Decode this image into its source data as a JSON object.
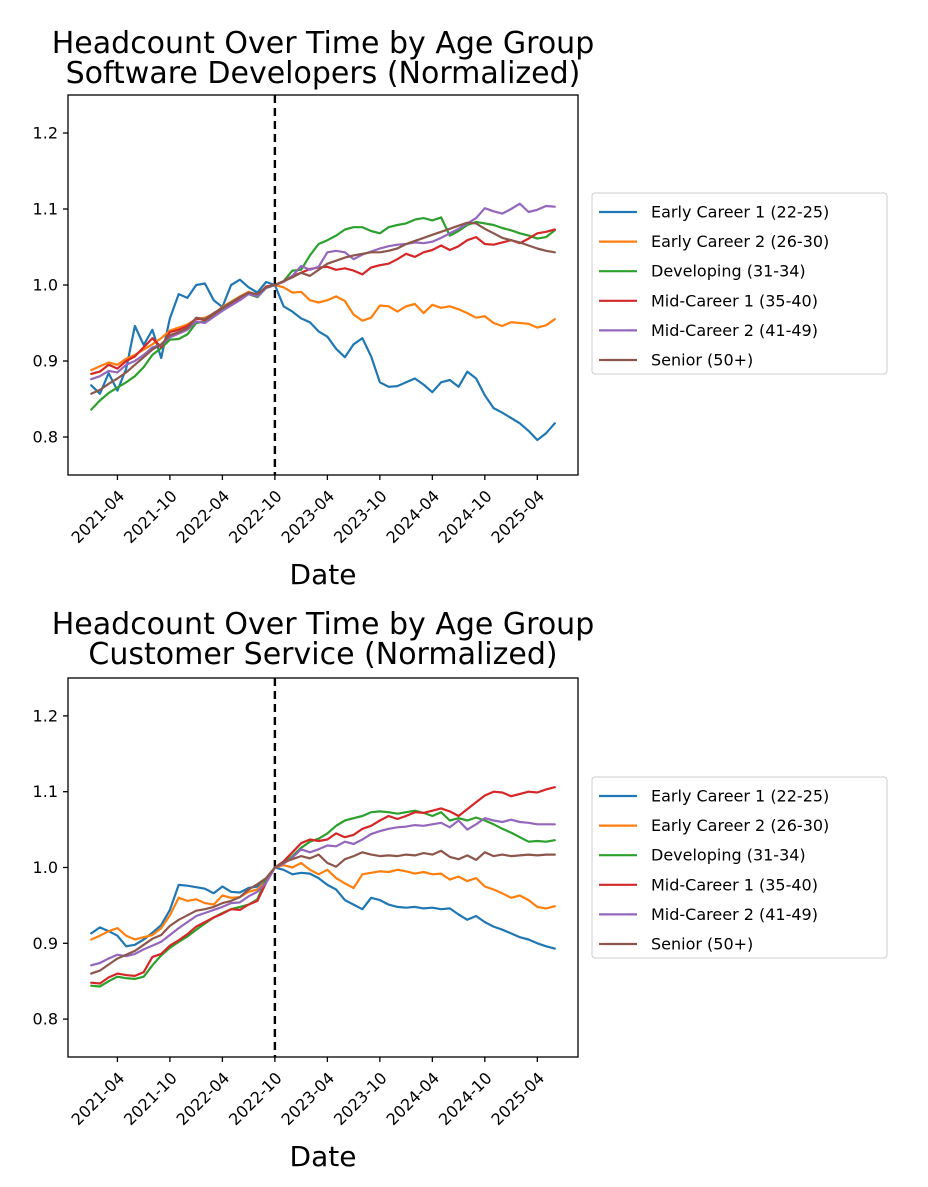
{
  "page": {
    "background": "#ffffff",
    "text_color": "#000000"
  },
  "months": [
    "2021-01",
    "2021-02",
    "2021-03",
    "2021-04",
    "2021-05",
    "2021-06",
    "2021-07",
    "2021-08",
    "2021-09",
    "2021-10",
    "2021-11",
    "2021-12",
    "2022-01",
    "2022-02",
    "2022-03",
    "2022-04",
    "2022-05",
    "2022-06",
    "2022-07",
    "2022-08",
    "2022-09",
    "2022-10",
    "2022-11",
    "2022-12",
    "2023-01",
    "2023-02",
    "2023-03",
    "2023-04",
    "2023-05",
    "2023-06",
    "2023-07",
    "2023-08",
    "2023-09",
    "2023-10",
    "2023-11",
    "2023-12",
    "2024-01",
    "2024-02",
    "2024-03",
    "2024-04",
    "2024-05",
    "2024-06",
    "2024-07",
    "2024-08",
    "2024-09",
    "2024-10",
    "2024-11",
    "2024-12",
    "2025-01",
    "2025-02",
    "2025-03",
    "2025-04",
    "2025-05",
    "2025-06"
  ],
  "x_tick_month_indices": [
    3,
    9,
    15,
    21,
    27,
    33,
    39,
    45,
    51
  ],
  "chart_data": [
    {
      "type": "line",
      "title": "Headcount Over Time by Age Group",
      "subtitle": "Software Developers (Normalized)",
      "xlabel": "Date",
      "x_tick_labels": [
        "2021-04",
        "2021-10",
        "2022-04",
        "2022-10",
        "2023-04",
        "2023-10",
        "2024-04",
        "2024-10",
        "2025-04"
      ],
      "ytick_labels": [
        "0.8",
        "0.9",
        "1.0",
        "1.1",
        "1.2"
      ],
      "ylim": [
        0.75,
        1.25
      ],
      "grid": false,
      "legend_position": "right",
      "vline": {
        "month_index": 21,
        "month": "2022-10",
        "style": "dashed",
        "color": "#000000"
      },
      "series": [
        {
          "name": "Early Career 1 (22-25)",
          "color": "#1f77b4",
          "values": [
            0.868,
            0.857,
            0.884,
            0.861,
            0.89,
            0.946,
            0.921,
            0.941,
            0.904,
            0.956,
            0.988,
            0.983,
            1.0,
            1.002,
            0.98,
            0.971,
            1.0,
            1.007,
            0.997,
            0.99,
            1.004,
            1.0,
            0.972,
            0.965,
            0.956,
            0.951,
            0.939,
            0.932,
            0.916,
            0.905,
            0.922,
            0.93,
            0.906,
            0.872,
            0.866,
            0.867,
            0.872,
            0.877,
            0.869,
            0.859,
            0.872,
            0.875,
            0.866,
            0.886,
            0.877,
            0.855,
            0.838,
            0.832,
            0.825,
            0.818,
            0.808,
            0.796,
            0.805,
            0.818
          ]
        },
        {
          "name": "Early Career 2 (26-30)",
          "color": "#ff7f0e",
          "values": [
            0.888,
            0.893,
            0.898,
            0.895,
            0.903,
            0.908,
            0.915,
            0.922,
            0.93,
            0.94,
            0.944,
            0.948,
            0.955,
            0.957,
            0.962,
            0.971,
            0.978,
            0.985,
            0.991,
            0.987,
            0.996,
            1.0,
            0.997,
            0.99,
            0.991,
            0.98,
            0.977,
            0.98,
            0.985,
            0.979,
            0.961,
            0.953,
            0.957,
            0.973,
            0.972,
            0.965,
            0.972,
            0.975,
            0.963,
            0.974,
            0.97,
            0.972,
            0.968,
            0.963,
            0.957,
            0.959,
            0.95,
            0.946,
            0.951,
            0.95,
            0.949,
            0.944,
            0.947,
            0.955
          ]
        },
        {
          "name": "Developing (31-34)",
          "color": "#2ca02c",
          "values": [
            0.836,
            0.848,
            0.858,
            0.865,
            0.872,
            0.88,
            0.892,
            0.908,
            0.917,
            0.928,
            0.929,
            0.935,
            0.95,
            0.952,
            0.96,
            0.968,
            0.975,
            0.982,
            0.988,
            0.984,
            0.996,
            1.0,
            1.005,
            1.019,
            1.02,
            1.039,
            1.054,
            1.059,
            1.065,
            1.073,
            1.076,
            1.076,
            1.071,
            1.068,
            1.076,
            1.079,
            1.081,
            1.086,
            1.088,
            1.085,
            1.089,
            1.065,
            1.071,
            1.079,
            1.083,
            1.081,
            1.079,
            1.075,
            1.072,
            1.068,
            1.065,
            1.061,
            1.063,
            1.072
          ]
        },
        {
          "name": "Mid-Career 1 (35-40)",
          "color": "#d62728",
          "values": [
            0.883,
            0.886,
            0.895,
            0.89,
            0.9,
            0.906,
            0.918,
            0.93,
            0.918,
            0.938,
            0.941,
            0.946,
            0.956,
            0.954,
            0.962,
            0.97,
            0.976,
            0.983,
            0.99,
            0.986,
            0.998,
            1.0,
            1.005,
            1.012,
            1.016,
            1.021,
            1.023,
            1.024,
            1.02,
            1.022,
            1.019,
            1.014,
            1.023,
            1.026,
            1.028,
            1.034,
            1.041,
            1.037,
            1.043,
            1.046,
            1.052,
            1.046,
            1.051,
            1.059,
            1.063,
            1.054,
            1.053,
            1.056,
            1.059,
            1.055,
            1.061,
            1.068,
            1.07,
            1.073
          ]
        },
        {
          "name": "Mid-Career 2 (41-49)",
          "color": "#9467bd",
          "values": [
            0.876,
            0.88,
            0.887,
            0.885,
            0.895,
            0.9,
            0.908,
            0.918,
            0.921,
            0.931,
            0.936,
            0.941,
            0.952,
            0.95,
            0.958,
            0.966,
            0.973,
            0.98,
            0.988,
            0.985,
            0.996,
            1.0,
            1.004,
            1.012,
            1.025,
            1.02,
            1.024,
            1.043,
            1.045,
            1.043,
            1.034,
            1.04,
            1.044,
            1.048,
            1.051,
            1.053,
            1.054,
            1.056,
            1.055,
            1.057,
            1.062,
            1.068,
            1.074,
            1.081,
            1.088,
            1.101,
            1.097,
            1.094,
            1.1,
            1.107,
            1.096,
            1.099,
            1.104,
            1.103
          ]
        },
        {
          "name": "Senior (50+)",
          "color": "#8c564b",
          "values": [
            0.857,
            0.862,
            0.87,
            0.877,
            0.885,
            0.895,
            0.905,
            0.915,
            0.922,
            0.934,
            0.938,
            0.943,
            0.957,
            0.955,
            0.963,
            0.97,
            0.977,
            0.984,
            0.99,
            0.988,
            0.997,
            1.0,
            1.005,
            1.01,
            1.016,
            1.012,
            1.02,
            1.028,
            1.032,
            1.036,
            1.039,
            1.041,
            1.043,
            1.043,
            1.045,
            1.048,
            1.054,
            1.058,
            1.062,
            1.066,
            1.07,
            1.074,
            1.078,
            1.082,
            1.081,
            1.074,
            1.068,
            1.062,
            1.059,
            1.056,
            1.052,
            1.048,
            1.045,
            1.043
          ]
        }
      ]
    },
    {
      "type": "line",
      "title": "Headcount Over Time by Age Group",
      "subtitle": "Customer Service (Normalized)",
      "xlabel": "Date",
      "x_tick_labels": [
        "2021-04",
        "2021-10",
        "2022-04",
        "2022-10",
        "2023-04",
        "2023-10",
        "2024-04",
        "2024-10",
        "2025-04"
      ],
      "ytick_labels": [
        "0.8",
        "0.9",
        "1.0",
        "1.1",
        "1.2"
      ],
      "ylim": [
        0.75,
        1.25
      ],
      "grid": false,
      "legend_position": "right",
      "vline": {
        "month_index": 21,
        "month": "2022-10",
        "style": "dashed",
        "color": "#000000"
      },
      "series": [
        {
          "name": "Early Career 1 (22-25)",
          "color": "#1f77b4",
          "values": [
            0.913,
            0.921,
            0.916,
            0.91,
            0.896,
            0.898,
            0.905,
            0.914,
            0.924,
            0.944,
            0.977,
            0.976,
            0.974,
            0.972,
            0.966,
            0.975,
            0.968,
            0.967,
            0.973,
            0.975,
            0.984,
            1.0,
            0.997,
            0.991,
            0.993,
            0.992,
            0.986,
            0.977,
            0.971,
            0.957,
            0.951,
            0.945,
            0.96,
            0.957,
            0.951,
            0.948,
            0.947,
            0.948,
            0.946,
            0.947,
            0.945,
            0.946,
            0.938,
            0.931,
            0.936,
            0.928,
            0.922,
            0.918,
            0.913,
            0.908,
            0.905,
            0.9,
            0.896,
            0.893
          ]
        },
        {
          "name": "Early Career 2 (26-30)",
          "color": "#ff7f0e",
          "values": [
            0.905,
            0.91,
            0.916,
            0.92,
            0.91,
            0.905,
            0.908,
            0.911,
            0.92,
            0.937,
            0.96,
            0.956,
            0.958,
            0.953,
            0.951,
            0.963,
            0.96,
            0.961,
            0.968,
            0.971,
            0.983,
            1.0,
            1.003,
            1.0,
            1.006,
            0.997,
            0.991,
            0.997,
            0.986,
            0.979,
            0.973,
            0.991,
            0.993,
            0.995,
            0.994,
            0.997,
            0.995,
            0.992,
            0.994,
            0.991,
            0.992,
            0.984,
            0.988,
            0.982,
            0.986,
            0.975,
            0.971,
            0.966,
            0.96,
            0.963,
            0.957,
            0.948,
            0.946,
            0.949
          ]
        },
        {
          "name": "Developing (31-34)",
          "color": "#2ca02c",
          "values": [
            0.844,
            0.843,
            0.85,
            0.856,
            0.854,
            0.853,
            0.856,
            0.871,
            0.884,
            0.894,
            0.902,
            0.909,
            0.918,
            0.926,
            0.934,
            0.94,
            0.945,
            0.948,
            0.951,
            0.958,
            0.985,
            1.0,
            1.006,
            1.015,
            1.026,
            1.034,
            1.038,
            1.045,
            1.055,
            1.062,
            1.065,
            1.068,
            1.073,
            1.074,
            1.073,
            1.071,
            1.073,
            1.075,
            1.072,
            1.068,
            1.073,
            1.062,
            1.065,
            1.062,
            1.066,
            1.062,
            1.057,
            1.051,
            1.046,
            1.04,
            1.034,
            1.035,
            1.034,
            1.036
          ]
        },
        {
          "name": "Mid-Career 1 (35-40)",
          "color": "#d62728",
          "values": [
            0.848,
            0.847,
            0.855,
            0.86,
            0.858,
            0.857,
            0.862,
            0.882,
            0.886,
            0.897,
            0.904,
            0.912,
            0.922,
            0.928,
            0.934,
            0.939,
            0.945,
            0.944,
            0.951,
            0.956,
            0.98,
            1.0,
            1.008,
            1.02,
            1.032,
            1.037,
            1.035,
            1.037,
            1.045,
            1.04,
            1.043,
            1.051,
            1.055,
            1.062,
            1.068,
            1.064,
            1.068,
            1.073,
            1.072,
            1.075,
            1.078,
            1.074,
            1.068,
            1.077,
            1.086,
            1.095,
            1.1,
            1.099,
            1.094,
            1.097,
            1.1,
            1.099,
            1.103,
            1.106
          ]
        },
        {
          "name": "Mid-Career 2 (41-49)",
          "color": "#9467bd",
          "values": [
            0.871,
            0.874,
            0.88,
            0.885,
            0.883,
            0.886,
            0.892,
            0.897,
            0.902,
            0.911,
            0.92,
            0.928,
            0.936,
            0.94,
            0.944,
            0.948,
            0.953,
            0.954,
            0.962,
            0.968,
            0.98,
            1.0,
            1.005,
            1.013,
            1.024,
            1.02,
            1.024,
            1.029,
            1.028,
            1.034,
            1.031,
            1.037,
            1.044,
            1.048,
            1.051,
            1.053,
            1.054,
            1.056,
            1.055,
            1.057,
            1.059,
            1.053,
            1.062,
            1.05,
            1.057,
            1.065,
            1.062,
            1.06,
            1.063,
            1.06,
            1.059,
            1.057,
            1.057,
            1.057
          ]
        },
        {
          "name": "Senior (50+)",
          "color": "#8c564b",
          "values": [
            0.86,
            0.864,
            0.872,
            0.88,
            0.885,
            0.89,
            0.898,
            0.906,
            0.911,
            0.923,
            0.931,
            0.937,
            0.943,
            0.945,
            0.948,
            0.953,
            0.956,
            0.961,
            0.971,
            0.978,
            0.986,
            1.0,
            1.007,
            1.011,
            1.015,
            1.012,
            1.017,
            1.006,
            1.001,
            1.011,
            1.015,
            1.02,
            1.017,
            1.015,
            1.016,
            1.015,
            1.017,
            1.016,
            1.019,
            1.017,
            1.022,
            1.014,
            1.011,
            1.016,
            1.01,
            1.02,
            1.015,
            1.017,
            1.015,
            1.016,
            1.017,
            1.016,
            1.017,
            1.017
          ]
        }
      ]
    }
  ]
}
